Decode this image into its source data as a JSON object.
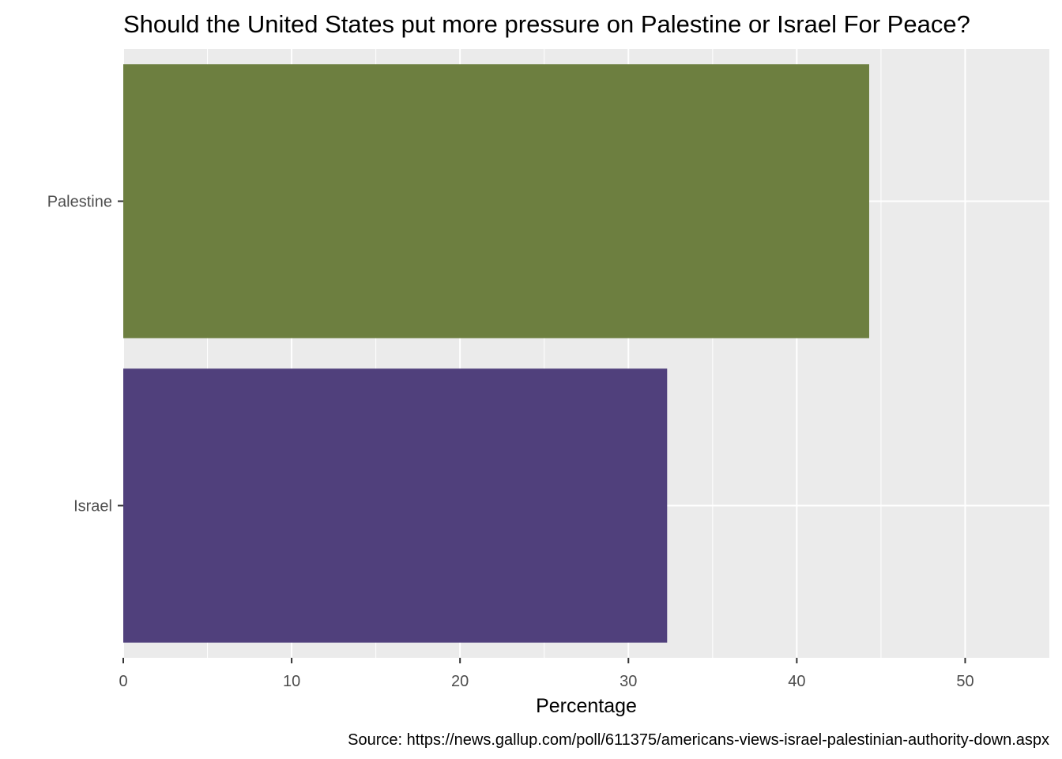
{
  "chart_data": {
    "type": "bar",
    "orientation": "horizontal",
    "title": "Should the United States put more pressure on Palestine or Israel For Peace?",
    "xlabel": "Percentage",
    "ylabel": "",
    "categories": [
      "Palestine",
      "Israel"
    ],
    "values": [
      44.3,
      32.3
    ],
    "colors": [
      "#6d7f40",
      "#50407c"
    ],
    "xlim": [
      0,
      55
    ],
    "xticks": [
      0,
      10,
      20,
      30,
      40,
      50
    ],
    "grid": true,
    "legend": "none",
    "caption": "Source: https://news.gallup.com/poll/611375/americans-views-israel-palestinian-authority-down.aspx"
  }
}
